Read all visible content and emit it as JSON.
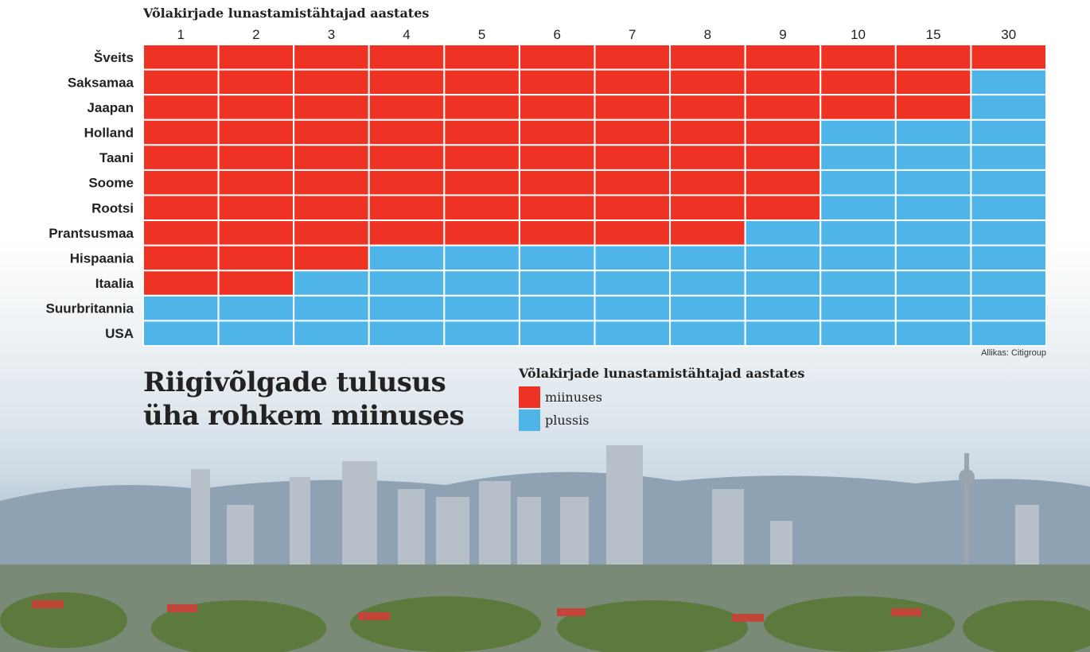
{
  "chart_data": {
    "type": "heatmap",
    "title": "Riigivõlgade tulusus üha rohkem miinuses",
    "xlabel": "Võlakirjade lunastamistähtajad aastates",
    "x": [
      "1",
      "2",
      "3",
      "4",
      "5",
      "6",
      "7",
      "8",
      "9",
      "10",
      "15",
      "30"
    ],
    "y": [
      "Šveits",
      "Saksamaa",
      "Jaapan",
      "Holland",
      "Taani",
      "Soome",
      "Rootsi",
      "Prantsusmaa",
      "Hispaania",
      "Itaalia",
      "Suurbritannia",
      "USA"
    ],
    "values": [
      [
        -1,
        -1,
        -1,
        -1,
        -1,
        -1,
        -1,
        -1,
        -1,
        -1,
        -1,
        -1
      ],
      [
        -1,
        -1,
        -1,
        -1,
        -1,
        -1,
        -1,
        -1,
        -1,
        -1,
        -1,
        1
      ],
      [
        -1,
        -1,
        -1,
        -1,
        -1,
        -1,
        -1,
        -1,
        -1,
        -1,
        -1,
        1
      ],
      [
        -1,
        -1,
        -1,
        -1,
        -1,
        -1,
        -1,
        -1,
        -1,
        1,
        1,
        1
      ],
      [
        -1,
        -1,
        -1,
        -1,
        -1,
        -1,
        -1,
        -1,
        -1,
        1,
        1,
        1
      ],
      [
        -1,
        -1,
        -1,
        -1,
        -1,
        -1,
        -1,
        -1,
        -1,
        1,
        1,
        1
      ],
      [
        -1,
        -1,
        -1,
        -1,
        -1,
        -1,
        -1,
        -1,
        -1,
        1,
        1,
        1
      ],
      [
        -1,
        -1,
        -1,
        -1,
        -1,
        -1,
        -1,
        -1,
        1,
        1,
        1,
        1
      ],
      [
        -1,
        -1,
        -1,
        1,
        1,
        1,
        1,
        1,
        1,
        1,
        1,
        1
      ],
      [
        -1,
        -1,
        1,
        1,
        1,
        1,
        1,
        1,
        1,
        1,
        1,
        1
      ],
      [
        1,
        1,
        1,
        1,
        1,
        1,
        1,
        1,
        1,
        1,
        1,
        1
      ],
      [
        1,
        1,
        1,
        1,
        1,
        1,
        1,
        1,
        1,
        1,
        1,
        1
      ]
    ],
    "legend": {
      "title": "Võlakirjade lunastamistähtajad aastates",
      "items": [
        {
          "label": "miinuses",
          "value": -1,
          "color": "#ee3224"
        },
        {
          "label": "plussis",
          "value": 1,
          "color": "#4fb5e8"
        }
      ]
    },
    "source": "Allikas: Citigroup"
  },
  "colors": {
    "negative": "#ee3224",
    "positive": "#4fb5e8"
  }
}
